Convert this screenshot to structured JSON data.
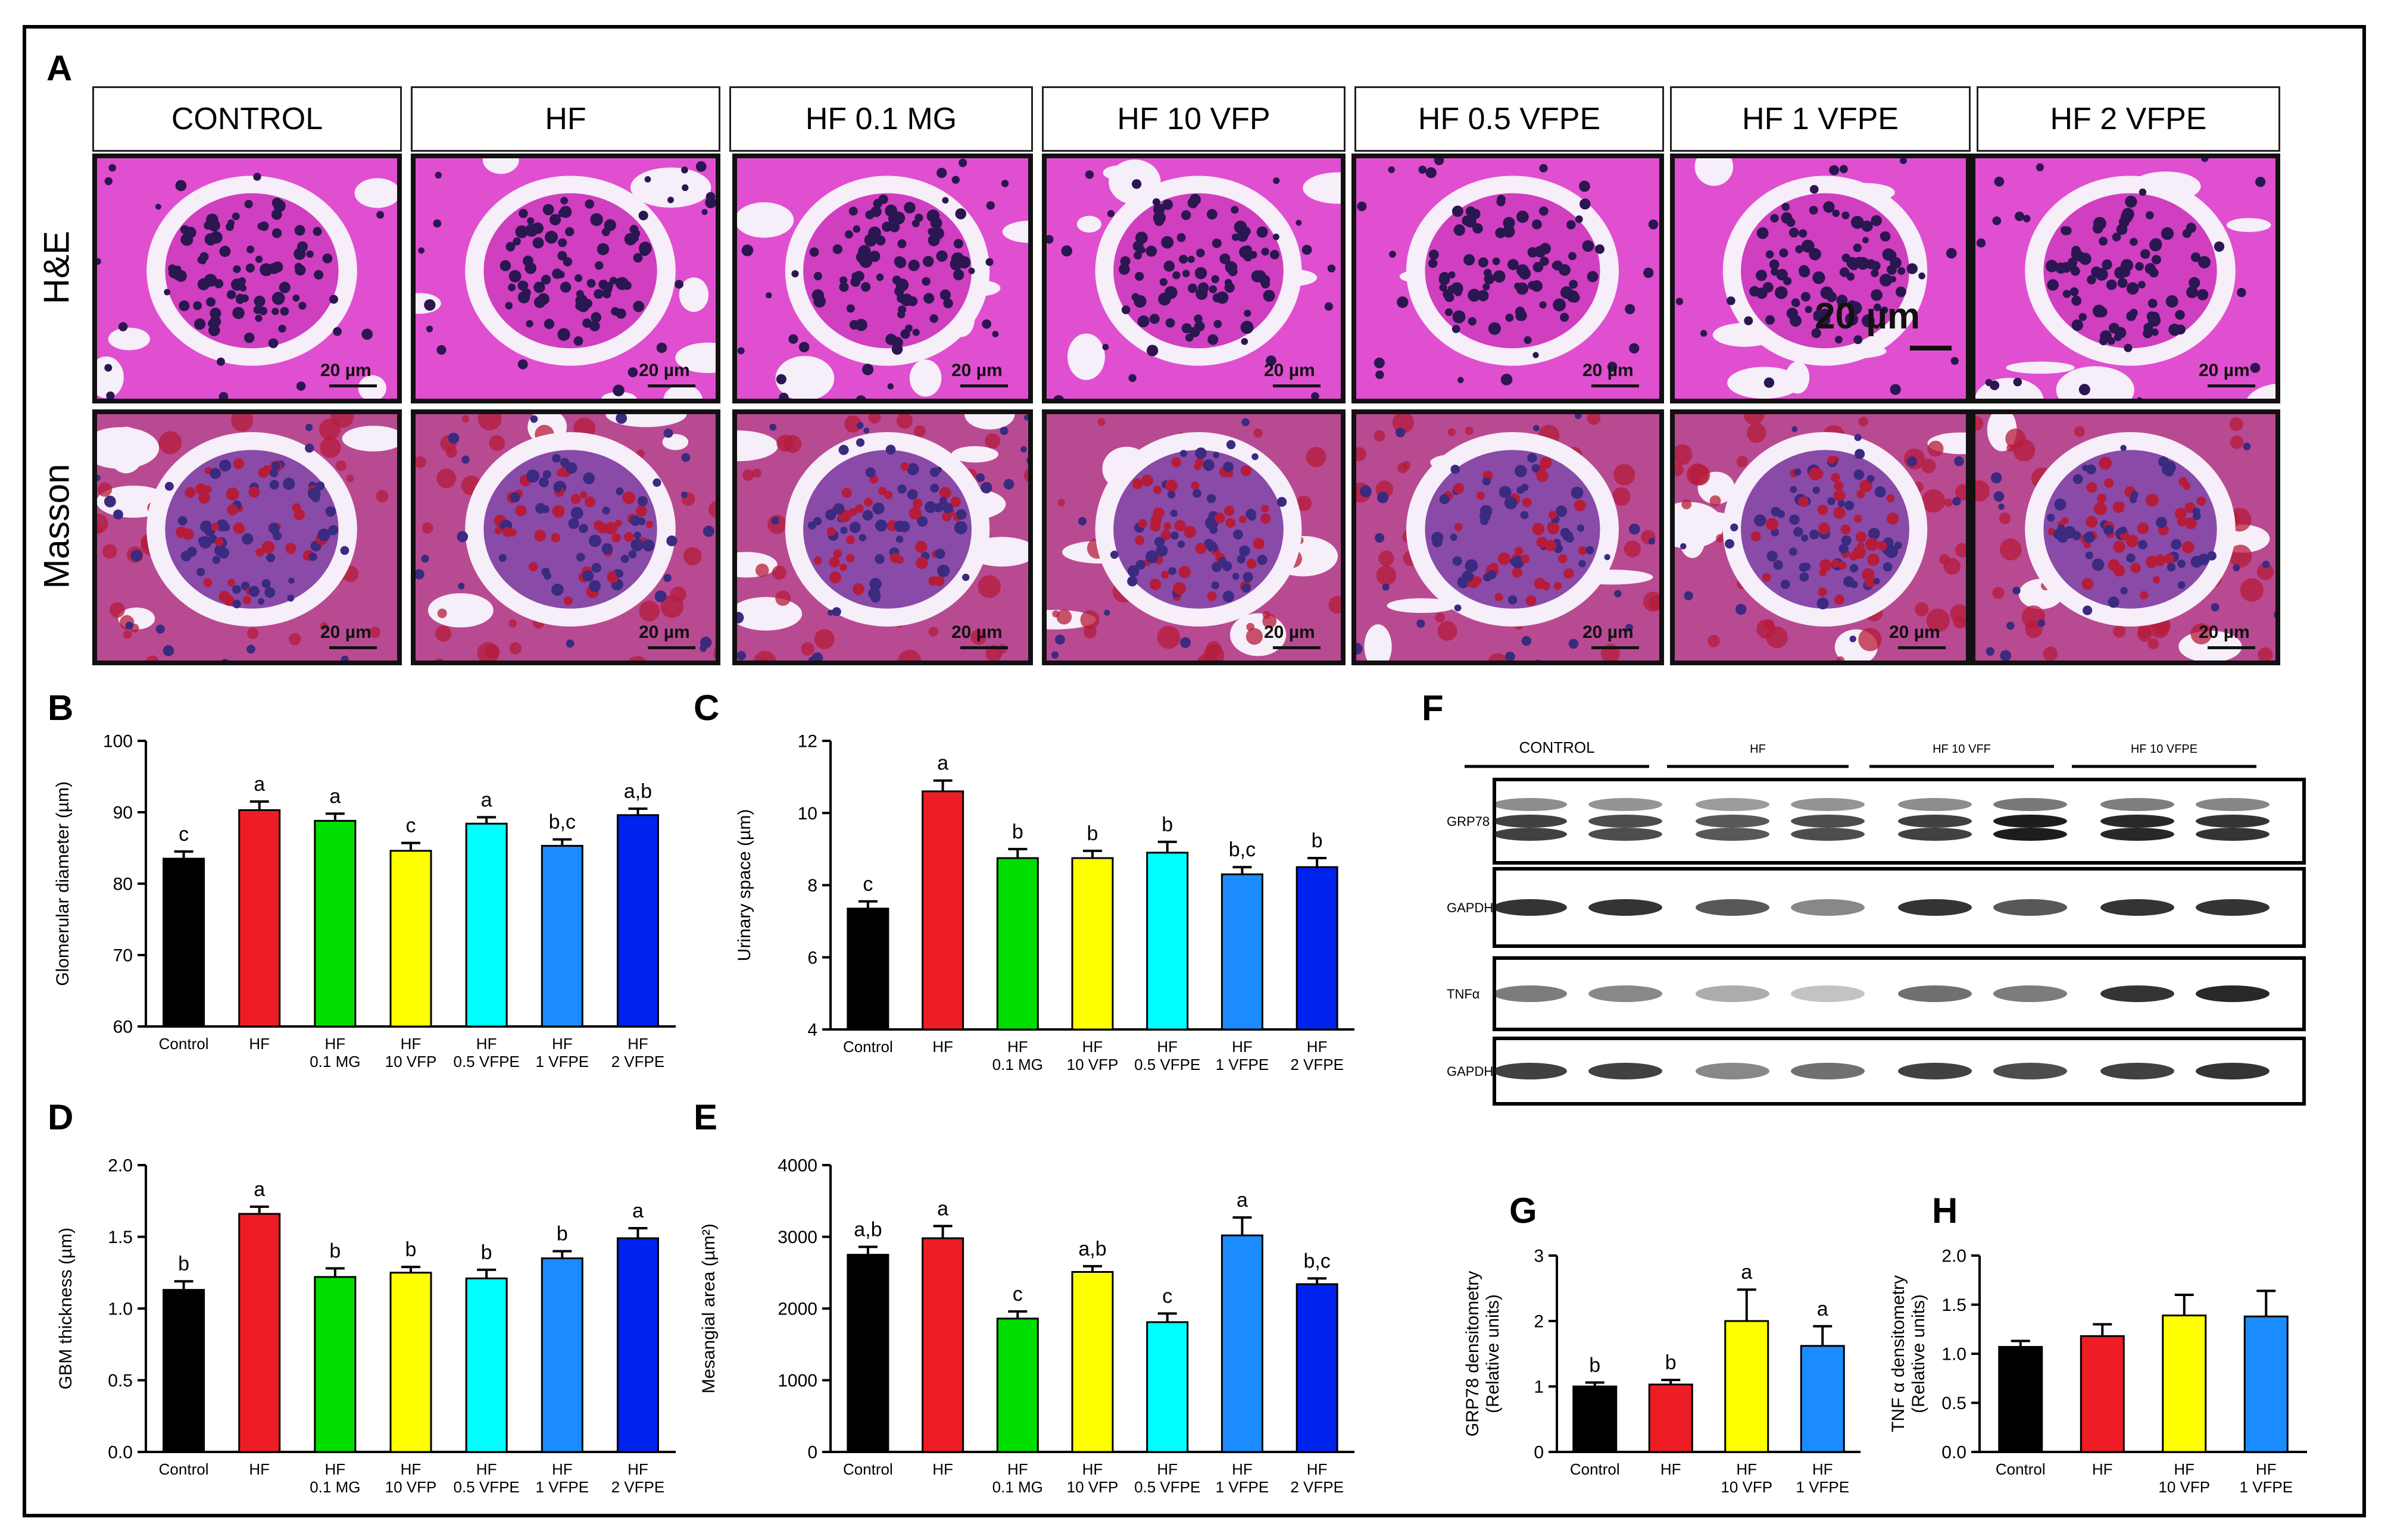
{
  "panel_labels": {
    "A": "A",
    "B": "B",
    "C": "C",
    "D": "D",
    "E": "E",
    "F": "F",
    "G": "G",
    "H": "H"
  },
  "histology": {
    "columns": [
      "CONTROL",
      "HF",
      "HF 0.1 MG",
      "HF 10 VFP",
      "HF 0.5 VFPE",
      "HF 1 VFPE",
      "HF 2 VFPE"
    ],
    "rows": [
      "H&E",
      "Masson"
    ],
    "scale_label": "20 µm",
    "colors": {
      "he_bg": "#e04fd0",
      "he_nucleus": "#2a1650",
      "masson_bg": "#b84a92",
      "masson_nucleus": "#3a2a80",
      "masson_red": "#b51c3a",
      "lumen": "#f6eef8"
    }
  },
  "chart_data": [
    {
      "panel": "B",
      "type": "bar",
      "categories": [
        "Control",
        "HF",
        "HF\n0.1 MG",
        "HF\n10 VFP",
        "HF\n0.5 VFPE",
        "HF\n1 VFPE",
        "HF\n2 VFPE"
      ],
      "values": [
        83.5,
        90.3,
        88.8,
        84.6,
        88.4,
        85.3,
        89.6
      ],
      "errors": [
        1.0,
        1.2,
        1.0,
        1.1,
        0.9,
        0.9,
        0.9
      ],
      "letters": [
        "c",
        "a",
        "a",
        "c",
        "a",
        "b,c",
        "a,b"
      ],
      "colors": [
        "#000000",
        "#ee1c25",
        "#00dd00",
        "#ffff00",
        "#00ffff",
        "#1a8cff",
        "#0022ee"
      ],
      "ylabel": "Glomerular diameter (µm)",
      "ylim": [
        60,
        100
      ],
      "yticks": [
        60,
        70,
        80,
        90,
        100
      ]
    },
    {
      "panel": "C",
      "type": "bar",
      "categories": [
        "Control",
        "HF",
        "HF\n0.1 MG",
        "HF\n10 VFP",
        "HF\n0.5 VFPE",
        "HF\n1 VFPE",
        "HF\n2 VFPE"
      ],
      "values": [
        7.35,
        10.6,
        8.75,
        8.75,
        8.9,
        8.3,
        8.5
      ],
      "errors": [
        0.2,
        0.3,
        0.25,
        0.2,
        0.3,
        0.2,
        0.25
      ],
      "letters": [
        "c",
        "a",
        "b",
        "b",
        "b",
        "b,c",
        "b"
      ],
      "colors": [
        "#000000",
        "#ee1c25",
        "#00dd00",
        "#ffff00",
        "#00ffff",
        "#1a8cff",
        "#0022ee"
      ],
      "ylabel": "Urinary space (µm)",
      "ylim": [
        4,
        12
      ],
      "yticks": [
        4,
        6,
        8,
        10,
        12
      ]
    },
    {
      "panel": "D",
      "type": "bar",
      "categories": [
        "Control",
        "HF",
        "HF\n0.1 MG",
        "HF\n10 VFP",
        "HF\n0.5 VFPE",
        "HF\n1 VFPE",
        "HF\n2 VFPE"
      ],
      "values": [
        1.13,
        1.66,
        1.22,
        1.25,
        1.21,
        1.35,
        1.49
      ],
      "errors": [
        0.06,
        0.05,
        0.06,
        0.04,
        0.06,
        0.05,
        0.07
      ],
      "letters": [
        "b",
        "a",
        "b",
        "b",
        "b",
        "b",
        "a"
      ],
      "colors": [
        "#000000",
        "#ee1c25",
        "#00dd00",
        "#ffff00",
        "#00ffff",
        "#1a8cff",
        "#0022ee"
      ],
      "ylabel": "GBM thickness (µm)",
      "ylim": [
        0,
        2
      ],
      "yticks": [
        "0.0",
        "0.5",
        "1.0",
        "1.5",
        "2.0"
      ]
    },
    {
      "panel": "E",
      "type": "bar",
      "categories": [
        "Control",
        "HF",
        "HF\n0.1 MG",
        "HF\n10 VFP",
        "HF\n0.5 VFPE",
        "HF\n1 VFPE",
        "HF\n2 VFPE"
      ],
      "values": [
        2750,
        2980,
        1860,
        2510,
        1810,
        3020,
        2340
      ],
      "errors": [
        110,
        170,
        100,
        80,
        120,
        250,
        80
      ],
      "letters": [
        "a,b",
        "a",
        "c",
        "a,b",
        "c",
        "a",
        "b,c"
      ],
      "colors": [
        "#000000",
        "#ee1c25",
        "#00dd00",
        "#ffff00",
        "#00ffff",
        "#1a8cff",
        "#0022ee"
      ],
      "ylabel": "Mesangial area (µm²)",
      "ylim": [
        0,
        4000
      ],
      "yticks": [
        0,
        1000,
        2000,
        3000,
        4000
      ]
    },
    {
      "panel": "G",
      "type": "bar",
      "categories": [
        "Control",
        "HF",
        "HF\n10 VFP",
        "HF\n1 VFPE"
      ],
      "values": [
        1.0,
        1.03,
        2.0,
        1.62
      ],
      "errors": [
        0.06,
        0.07,
        0.48,
        0.3
      ],
      "letters": [
        "b",
        "b",
        "a",
        "a"
      ],
      "colors": [
        "#000000",
        "#ee1c25",
        "#ffff00",
        "#1a8cff"
      ],
      "ylabel": "GRP78 densitometry\n(Relative units)",
      "ylim": [
        0,
        3
      ],
      "yticks": [
        0,
        1,
        2,
        3
      ]
    },
    {
      "panel": "H",
      "type": "bar",
      "categories": [
        "Control",
        "HF",
        "HF\n10 VFP",
        "HF\n1 VFPE"
      ],
      "values": [
        1.07,
        1.18,
        1.39,
        1.38
      ],
      "errors": [
        0.06,
        0.12,
        0.21,
        0.26
      ],
      "letters": [
        "",
        "",
        "",
        ""
      ],
      "colors": [
        "#000000",
        "#ee1c25",
        "#ffff00",
        "#1a8cff"
      ],
      "ylabel": "TNF α densitometry\n(Relative units)",
      "ylim": [
        0,
        2
      ],
      "yticks": [
        "0.0",
        "0.5",
        "1.0",
        "1.5",
        "2.0"
      ]
    }
  ],
  "western_blot": {
    "groups": [
      "CONTROL",
      "HF",
      "HF 10 VFF",
      "HF 10 VFPE"
    ],
    "rows": [
      "GRP78",
      "GAPDH",
      "TNFα",
      "GAPDH"
    ],
    "lanes_per_group": 2
  }
}
